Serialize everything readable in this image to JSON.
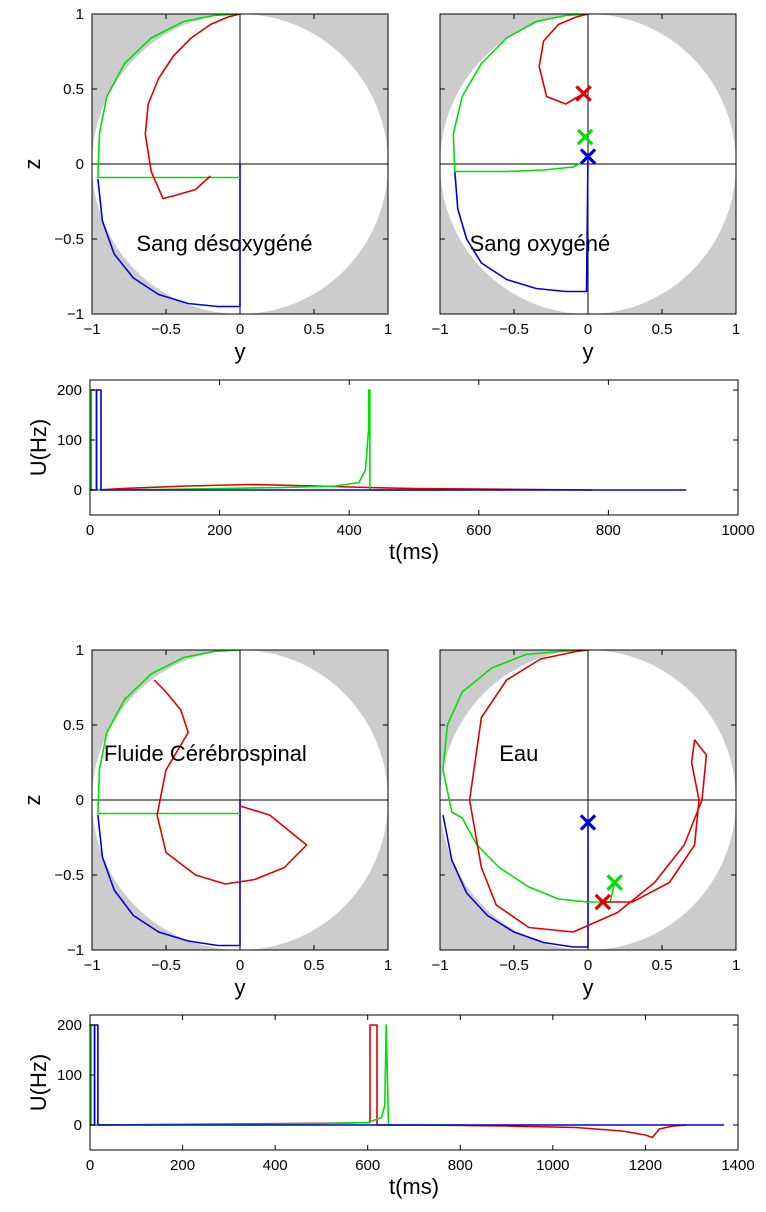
{
  "colors": {
    "red": "#e00000",
    "green": "#00e000",
    "blue": "#0000dd",
    "background_gray": "#cccccc",
    "disc": "#ffffff"
  },
  "chart_data": [
    {
      "type": "line",
      "panel": "sphere",
      "label": "Sang désoxygéné",
      "xlabel": "y",
      "ylabel": "z",
      "xlim": [
        -1,
        1
      ],
      "ylim": [
        -1,
        1
      ],
      "xticks": [
        "−1",
        "−0.5",
        "0",
        "0.5",
        "1"
      ],
      "yticks": [
        "−1",
        "−0.5",
        "0",
        "0.5",
        "1"
      ],
      "series": [
        {
          "color": "blue",
          "x": [
            0,
            0,
            -0.15,
            -0.35,
            -0.55,
            -0.72,
            -0.85,
            -0.93,
            -0.96
          ],
          "y": [
            0,
            -0.95,
            -0.95,
            -0.93,
            -0.87,
            -0.76,
            -0.6,
            -0.38,
            -0.1
          ]
        },
        {
          "color": "green",
          "x": [
            0,
            -0.96,
            -0.95,
            -0.9,
            -0.78,
            -0.6,
            -0.38,
            -0.18,
            0
          ],
          "y": [
            -0.09,
            -0.09,
            0.2,
            0.45,
            0.67,
            0.84,
            0.95,
            0.99,
            1.0
          ]
        },
        {
          "color": "red",
          "x": [
            -0.2,
            -0.3,
            -0.44,
            -0.52,
            -0.6,
            -0.64,
            -0.62,
            -0.55,
            -0.45,
            -0.33,
            -0.2,
            -0.08,
            0
          ],
          "y": [
            -0.08,
            -0.17,
            -0.21,
            -0.23,
            -0.05,
            0.2,
            0.4,
            0.57,
            0.72,
            0.84,
            0.93,
            0.98,
            1.0
          ]
        }
      ],
      "markers": []
    },
    {
      "type": "line",
      "panel": "sphere",
      "label": "Sang oxygéné",
      "xlabel": "y",
      "ylabel": "",
      "xlim": [
        -1,
        1
      ],
      "ylim": [
        -1,
        1
      ],
      "xticks": [
        "−1",
        "−0.5",
        "0",
        "0.5",
        "1"
      ],
      "yticks": [],
      "series": [
        {
          "color": "blue",
          "x": [
            0,
            -0.01,
            -0.15,
            -0.35,
            -0.55,
            -0.72,
            -0.82,
            -0.88,
            -0.9
          ],
          "y": [
            0.05,
            -0.85,
            -0.85,
            -0.83,
            -0.77,
            -0.66,
            -0.5,
            -0.3,
            -0.05
          ]
        },
        {
          "color": "green",
          "x": [
            -0.02,
            -0.1,
            -0.3,
            -0.55,
            -0.8,
            -0.9,
            -0.91,
            -0.85,
            -0.72,
            -0.55,
            -0.35,
            -0.15,
            0
          ],
          "y": [
            0.02,
            -0.02,
            -0.04,
            -0.05,
            -0.05,
            -0.05,
            0.2,
            0.45,
            0.67,
            0.84,
            0.95,
            0.99,
            1.0
          ]
        },
        {
          "color": "red",
          "x": [
            -0.03,
            -0.15,
            -0.28,
            -0.33,
            -0.3,
            -0.2,
            -0.08,
            0
          ],
          "y": [
            0.47,
            0.4,
            0.45,
            0.65,
            0.82,
            0.93,
            0.98,
            1.0
          ]
        }
      ],
      "markers": [
        {
          "color": "red",
          "x": -0.03,
          "y": 0.47
        },
        {
          "color": "green",
          "x": -0.02,
          "y": 0.18
        },
        {
          "color": "blue",
          "x": 0.0,
          "y": 0.05
        }
      ]
    },
    {
      "type": "line",
      "panel": "time",
      "xlabel": "t(ms)",
      "ylabel": "U(Hz)",
      "xlim": [
        0,
        1000
      ],
      "ylim": [
        -50,
        220
      ],
      "xticks": [
        0,
        200,
        400,
        600,
        800,
        1000
      ],
      "yticks": [
        0,
        100,
        200
      ],
      "series": [
        {
          "color": "red",
          "x": [
            0,
            2,
            2,
            10,
            10,
            50,
            150,
            250,
            350,
            430,
            500,
            600,
            775
          ],
          "y": [
            0,
            0,
            200,
            200,
            0,
            3,
            8,
            11,
            8,
            5,
            3,
            2,
            0
          ]
        },
        {
          "color": "green",
          "x": [
            0,
            2,
            2,
            10,
            10,
            100,
            200,
            300,
            380,
            415,
            425,
            430,
            430,
            432,
            432,
            440,
            545
          ],
          "y": [
            0,
            0,
            200,
            200,
            0,
            1,
            3,
            5,
            8,
            15,
            40,
            120,
            200,
            200,
            0,
            0,
            0
          ]
        },
        {
          "color": "blue",
          "x": [
            0,
            10,
            10,
            17,
            17,
            920
          ],
          "y": [
            0,
            0,
            200,
            200,
            0,
            0
          ]
        }
      ]
    },
    {
      "type": "line",
      "panel": "sphere",
      "label": "Fluide Cérébrospinal",
      "xlabel": "y",
      "ylabel": "z",
      "xlim": [
        -1,
        1
      ],
      "ylim": [
        -1,
        1
      ],
      "xticks": [
        "−1",
        "−0.5",
        "0",
        "0.5",
        "1"
      ],
      "yticks": [
        "−1",
        "−0.5",
        "0",
        "0.5",
        "1"
      ],
      "series": [
        {
          "color": "blue",
          "x": [
            0,
            0,
            -0.15,
            -0.35,
            -0.55,
            -0.72,
            -0.85,
            -0.93,
            -0.96
          ],
          "y": [
            0,
            -0.97,
            -0.97,
            -0.94,
            -0.88,
            -0.77,
            -0.6,
            -0.38,
            -0.1
          ]
        },
        {
          "color": "green",
          "x": [
            0,
            -0.96,
            -0.95,
            -0.9,
            -0.78,
            -0.6,
            -0.38,
            -0.18,
            0
          ],
          "y": [
            -0.09,
            -0.09,
            0.2,
            0.45,
            0.67,
            0.84,
            0.95,
            0.99,
            1.0
          ]
        },
        {
          "color": "red",
          "x": [
            0.0,
            0.2,
            0.45,
            0.3,
            0.1,
            -0.1,
            -0.3,
            -0.5,
            -0.56,
            -0.5,
            -0.35,
            -0.4,
            -0.5,
            -0.58
          ],
          "y": [
            -0.04,
            -0.1,
            -0.3,
            -0.45,
            -0.53,
            -0.56,
            -0.5,
            -0.35,
            -0.1,
            0.2,
            0.45,
            0.6,
            0.72,
            0.8
          ]
        }
      ],
      "markers": []
    },
    {
      "type": "line",
      "panel": "sphere",
      "label": "Eau",
      "xlabel": "y",
      "ylabel": "",
      "xlim": [
        -1,
        1
      ],
      "ylim": [
        -1,
        1
      ],
      "xticks": [
        "−1",
        "−0.5",
        "0",
        "0.5",
        "1"
      ],
      "yticks": [],
      "series": [
        {
          "color": "blue",
          "x": [
            0,
            0,
            -0.1,
            -0.3,
            -0.5,
            -0.68,
            -0.82,
            -0.92,
            -0.98
          ],
          "y": [
            -0.15,
            -0.98,
            -0.98,
            -0.95,
            -0.88,
            -0.77,
            -0.62,
            -0.4,
            -0.1
          ]
        },
        {
          "color": "green",
          "x": [
            0.18,
            0.15,
            0.0,
            -0.2,
            -0.4,
            -0.6,
            -0.75,
            -0.85,
            -0.92,
            -0.98,
            -0.95,
            -0.85,
            -0.65,
            -0.42,
            -0.2,
            0
          ],
          "y": [
            -0.55,
            -0.68,
            -0.68,
            -0.66,
            -0.58,
            -0.45,
            -0.3,
            -0.12,
            -0.08,
            0.2,
            0.5,
            0.72,
            0.88,
            0.97,
            0.99,
            1.0
          ]
        },
        {
          "color": "red",
          "x": [
            0.1,
            0.3,
            0.55,
            0.72,
            0.75,
            0.7,
            0.72,
            0.8,
            0.77,
            0.65,
            0.45,
            0.2,
            -0.1,
            -0.4,
            -0.62,
            -0.72,
            -0.8,
            -0.72,
            -0.55,
            -0.32,
            -0.08,
            0
          ],
          "y": [
            -0.68,
            -0.68,
            -0.55,
            -0.3,
            0.0,
            0.25,
            0.4,
            0.3,
            0.0,
            -0.3,
            -0.55,
            -0.75,
            -0.88,
            -0.85,
            -0.7,
            -0.45,
            0.0,
            0.55,
            0.8,
            0.94,
            0.99,
            1.0
          ]
        }
      ],
      "markers": [
        {
          "color": "blue",
          "x": 0.0,
          "y": -0.15
        },
        {
          "color": "green",
          "x": 0.18,
          "y": -0.55
        },
        {
          "color": "red",
          "x": 0.1,
          "y": -0.68
        }
      ]
    },
    {
      "type": "line",
      "panel": "time",
      "xlabel": "t(ms)",
      "ylabel": "U(Hz)",
      "xlim": [
        0,
        1400
      ],
      "ylim": [
        -50,
        220
      ],
      "xticks": [
        0,
        200,
        400,
        600,
        800,
        1000,
        1200,
        1400
      ],
      "yticks": [
        0,
        100,
        200
      ],
      "series": [
        {
          "color": "red",
          "x": [
            0,
            2,
            2,
            10,
            10,
            300,
            560,
            605,
            605,
            620,
            620,
            700,
            900,
            1050,
            1150,
            1200,
            1215,
            1230,
            1260,
            1290
          ],
          "y": [
            0,
            0,
            200,
            200,
            0,
            2,
            4,
            5,
            200,
            200,
            0,
            0,
            -2,
            -5,
            -12,
            -20,
            -25,
            -8,
            -2,
            0
          ]
        },
        {
          "color": "green",
          "x": [
            0,
            2,
            2,
            10,
            10,
            300,
            500,
            600,
            630,
            637,
            640,
            640,
            645,
            645,
            810
          ],
          "y": [
            0,
            0,
            200,
            200,
            0,
            1,
            3,
            5,
            15,
            40,
            200,
            200,
            0,
            0,
            0
          ]
        },
        {
          "color": "blue",
          "x": [
            0,
            10,
            10,
            17,
            17,
            1370
          ],
          "y": [
            0,
            0,
            200,
            200,
            0,
            0
          ]
        }
      ]
    }
  ]
}
